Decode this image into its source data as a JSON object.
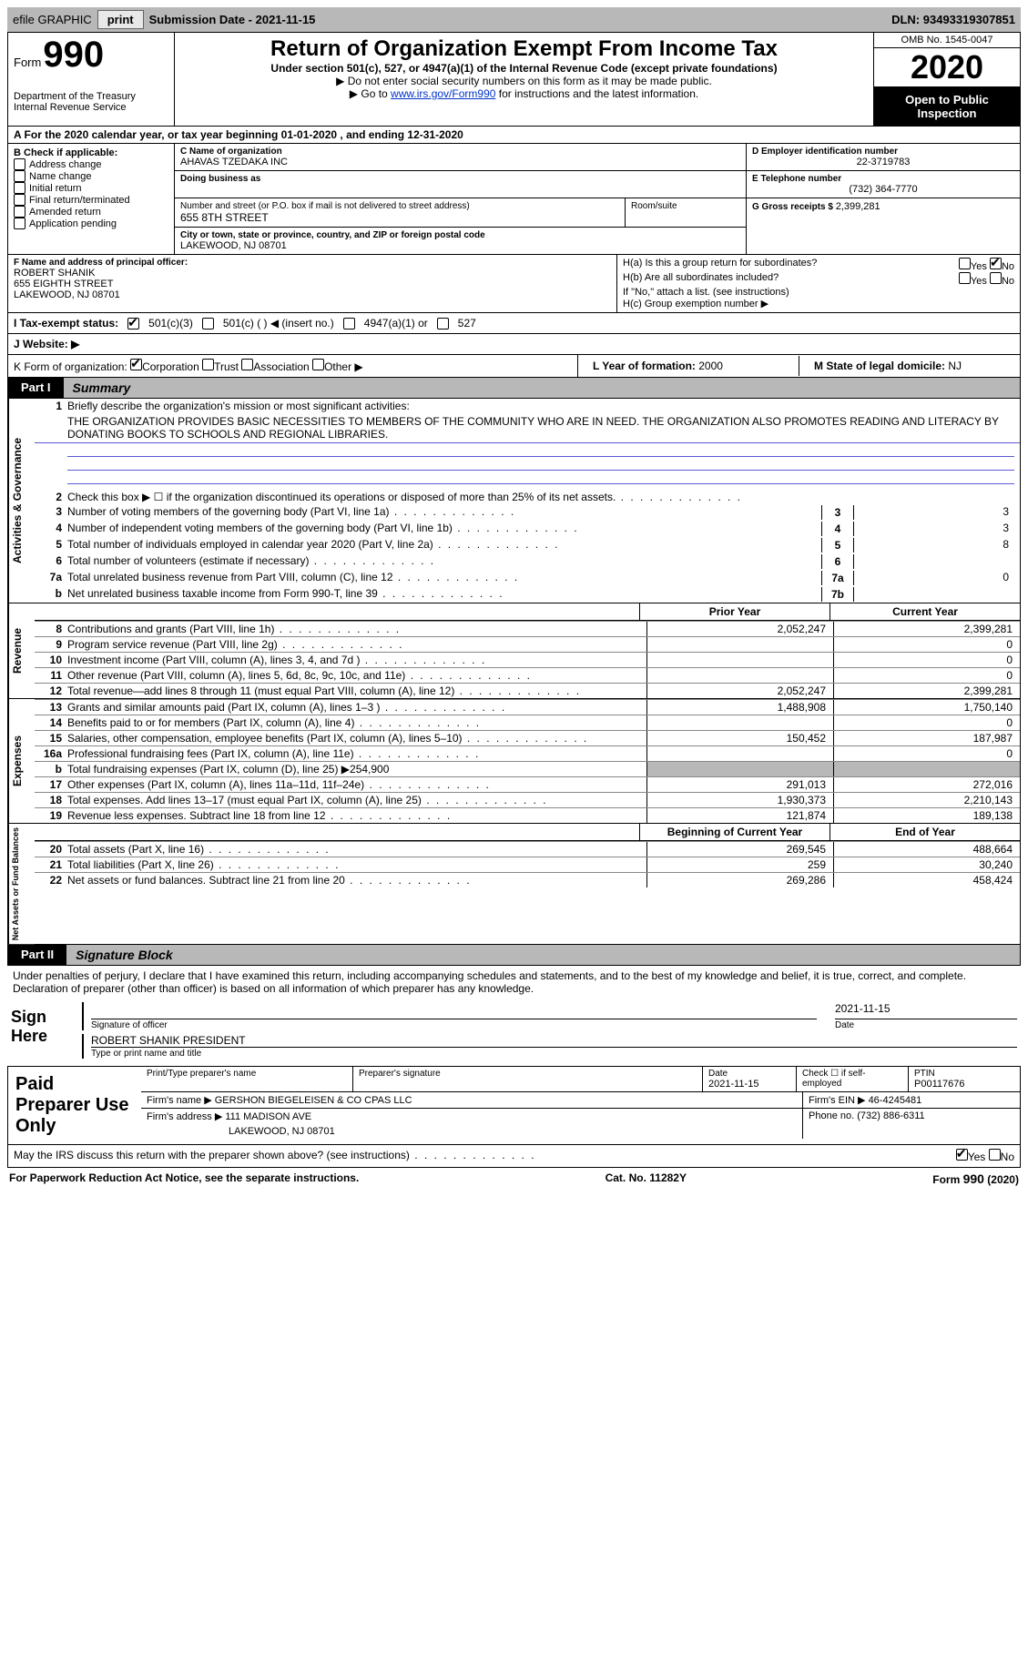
{
  "topbar": {
    "efile": "efile GRAPHIC",
    "print": "print",
    "submission_label": "Submission Date - ",
    "submission_date": "2021-11-15",
    "dln_label": "DLN: ",
    "dln": "93493319307851"
  },
  "header": {
    "form_word": "Form",
    "form_number": "990",
    "dept": "Department of the Treasury\nInternal Revenue Service",
    "title": "Return of Organization Exempt From Income Tax",
    "subtitle": "Under section 501(c), 527, or 4947(a)(1) of the Internal Revenue Code (except private foundations)",
    "note1": "▶ Do not enter social security numbers on this form as it may be made public.",
    "note2_prefix": "▶ Go to ",
    "note2_link": "www.irs.gov/Form990",
    "note2_suffix": " for instructions and the latest information.",
    "omb": "OMB No. 1545-0047",
    "year": "2020",
    "open": "Open to Public Inspection"
  },
  "period": {
    "label_a": "A For the 2020 calendar year, or tax year beginning ",
    "begin": "01-01-2020",
    "mid": " , and ending ",
    "end": "12-31-2020"
  },
  "box_b": {
    "header": "B Check if applicable:",
    "items": [
      "Address change",
      "Name change",
      "Initial return",
      "Final return/terminated",
      "Amended return",
      "Application pending"
    ]
  },
  "box_c": {
    "name_lbl": "C Name of organization",
    "name": "AHAVAS TZEDAKA INC",
    "dba_lbl": "Doing business as",
    "addr_lbl": "Number and street (or P.O. box if mail is not delivered to street address)",
    "addr": "655 8TH STREET",
    "room_lbl": "Room/suite",
    "city_lbl": "City or town, state or province, country, and ZIP or foreign postal code",
    "city": "LAKEWOOD, NJ  08701"
  },
  "box_d": {
    "ein_lbl": "D Employer identification number",
    "ein": "22-3719783",
    "phone_lbl": "E Telephone number",
    "phone": "(732) 364-7770",
    "gross_lbl": "G Gross receipts $ ",
    "gross": "2,399,281"
  },
  "box_f": {
    "lbl": "F Name and address of principal officer:",
    "name": "ROBERT SHANIK",
    "addr1": "655 EIGHTH STREET",
    "addr2": "LAKEWOOD, NJ  08701"
  },
  "box_h": {
    "a_lbl": "H(a)  Is this a group return for subordinates?",
    "b_lbl": "H(b)  Are all subordinates included?",
    "b_note": "If \"No,\" attach a list. (see instructions)",
    "c_lbl": "H(c)  Group exemption number ▶",
    "yes": "Yes",
    "no": "No"
  },
  "box_i": {
    "lbl": "I   Tax-exempt status:",
    "opts": [
      "501(c)(3)",
      "501(c) (  ) ◀ (insert no.)",
      "4947(a)(1) or",
      "527"
    ]
  },
  "box_j": {
    "lbl": "J   Website: ▶"
  },
  "box_k": {
    "lbl": "K Form of organization:",
    "opts": [
      "Corporation",
      "Trust",
      "Association",
      "Other ▶"
    ]
  },
  "box_l": {
    "lbl": "L Year of formation: ",
    "val": "2000"
  },
  "box_m": {
    "lbl": "M State of legal domicile: ",
    "val": "NJ"
  },
  "parts": {
    "p1_tab": "Part I",
    "p1_title": "Summary",
    "p2_tab": "Part II",
    "p2_title": "Signature Block"
  },
  "mission": {
    "line1_lbl": "Briefly describe the organization's mission or most significant activities:",
    "text": "THE ORGANIZATION PROVIDES BASIC NECESSITIES TO MEMBERS OF THE COMMUNITY WHO ARE IN NEED. THE ORGANIZATION ALSO PROMOTES READING AND LITERACY BY DONATING BOOKS TO SCHOOLS AND REGIONAL LIBRARIES."
  },
  "governance": {
    "tab": "Activities & Governance",
    "lines": [
      {
        "n": "2",
        "d": "Check this box ▶ ☐  if the organization discontinued its operations or disposed of more than 25% of its net assets."
      },
      {
        "n": "3",
        "d": "Number of voting members of the governing body (Part VI, line 1a)",
        "box": "3",
        "v": "3"
      },
      {
        "n": "4",
        "d": "Number of independent voting members of the governing body (Part VI, line 1b)",
        "box": "4",
        "v": "3"
      },
      {
        "n": "5",
        "d": "Total number of individuals employed in calendar year 2020 (Part V, line 2a)",
        "box": "5",
        "v": "8"
      },
      {
        "n": "6",
        "d": "Total number of volunteers (estimate if necessary)",
        "box": "6",
        "v": ""
      },
      {
        "n": "7a",
        "d": "Total unrelated business revenue from Part VIII, column (C), line 12",
        "box": "7a",
        "v": "0"
      },
      {
        "n": "b",
        "d": "Net unrelated business taxable income from Form 990-T, line 39",
        "box": "7b",
        "v": ""
      }
    ]
  },
  "fin_headers": {
    "prior": "Prior Year",
    "current": "Current Year"
  },
  "revenue": {
    "tab": "Revenue",
    "rows": [
      {
        "n": "8",
        "d": "Contributions and grants (Part VIII, line 1h)",
        "p": "2,052,247",
        "c": "2,399,281"
      },
      {
        "n": "9",
        "d": "Program service revenue (Part VIII, line 2g)",
        "p": "",
        "c": "0"
      },
      {
        "n": "10",
        "d": "Investment income (Part VIII, column (A), lines 3, 4, and 7d )",
        "p": "",
        "c": "0"
      },
      {
        "n": "11",
        "d": "Other revenue (Part VIII, column (A), lines 5, 6d, 8c, 9c, 10c, and 11e)",
        "p": "",
        "c": "0"
      },
      {
        "n": "12",
        "d": "Total revenue—add lines 8 through 11 (must equal Part VIII, column (A), line 12)",
        "p": "2,052,247",
        "c": "2,399,281"
      }
    ]
  },
  "expenses": {
    "tab": "Expenses",
    "rows": [
      {
        "n": "13",
        "d": "Grants and similar amounts paid (Part IX, column (A), lines 1–3 )",
        "p": "1,488,908",
        "c": "1,750,140"
      },
      {
        "n": "14",
        "d": "Benefits paid to or for members (Part IX, column (A), line 4)",
        "p": "",
        "c": "0"
      },
      {
        "n": "15",
        "d": "Salaries, other compensation, employee benefits (Part IX, column (A), lines 5–10)",
        "p": "150,452",
        "c": "187,987"
      },
      {
        "n": "16a",
        "d": "Professional fundraising fees (Part IX, column (A), line 11e)",
        "p": "",
        "c": "0"
      },
      {
        "n": "b",
        "d": "Total fundraising expenses (Part IX, column (D), line 25) ▶254,900",
        "shaded": true
      },
      {
        "n": "17",
        "d": "Other expenses (Part IX, column (A), lines 11a–11d, 11f–24e)",
        "p": "291,013",
        "c": "272,016"
      },
      {
        "n": "18",
        "d": "Total expenses. Add lines 13–17 (must equal Part IX, column (A), line 25)",
        "p": "1,930,373",
        "c": "2,210,143"
      },
      {
        "n": "19",
        "d": "Revenue less expenses. Subtract line 18 from line 12",
        "p": "121,874",
        "c": "189,138"
      }
    ]
  },
  "netassets": {
    "tab": "Net Assets or Fund Balances",
    "headers": {
      "beg": "Beginning of Current Year",
      "end": "End of Year"
    },
    "rows": [
      {
        "n": "20",
        "d": "Total assets (Part X, line 16)",
        "p": "269,545",
        "c": "488,664"
      },
      {
        "n": "21",
        "d": "Total liabilities (Part X, line 26)",
        "p": "259",
        "c": "30,240"
      },
      {
        "n": "22",
        "d": "Net assets or fund balances. Subtract line 21 from line 20",
        "p": "269,286",
        "c": "458,424"
      }
    ]
  },
  "sig": {
    "penalty": "Under penalties of perjury, I declare that I have examined this return, including accompanying schedules and statements, and to the best of my knowledge and belief, it is true, correct, and complete. Declaration of preparer (other than officer) is based on all information of which preparer has any knowledge.",
    "sign_here": "Sign Here",
    "officer_sig": "Signature of officer",
    "date_lbl": "Date",
    "date": "2021-11-15",
    "officer_name": "ROBERT SHANIK  PRESIDENT",
    "officer_name_lbl": "Type or print name and title",
    "paid_lbl": "Paid Preparer Use Only",
    "prep_name_lbl": "Print/Type preparer's name",
    "prep_sig_lbl": "Preparer's signature",
    "prep_date_lbl": "Date",
    "prep_date": "2021-11-15",
    "self_emp": "Check ☐ if self-employed",
    "ptin_lbl": "PTIN",
    "ptin": "P00117676",
    "firm_name_lbl": "Firm's name    ▶ ",
    "firm_name": "GERSHON BIEGELEISEN & CO CPAS LLC",
    "firm_ein_lbl": "Firm's EIN ▶ ",
    "firm_ein": "46-4245481",
    "firm_addr_lbl": "Firm's address ▶ ",
    "firm_addr": "111 MADISON AVE",
    "firm_city": "LAKEWOOD, NJ  08701",
    "firm_phone_lbl": "Phone no. ",
    "firm_phone": "(732) 886-6311",
    "discuss": "May the IRS discuss this return with the preparer shown above? (see instructions)"
  },
  "footer": {
    "pra": "For Paperwork Reduction Act Notice, see the separate instructions.",
    "cat": "Cat. No. 11282Y",
    "form": "Form 990 (2020)"
  }
}
